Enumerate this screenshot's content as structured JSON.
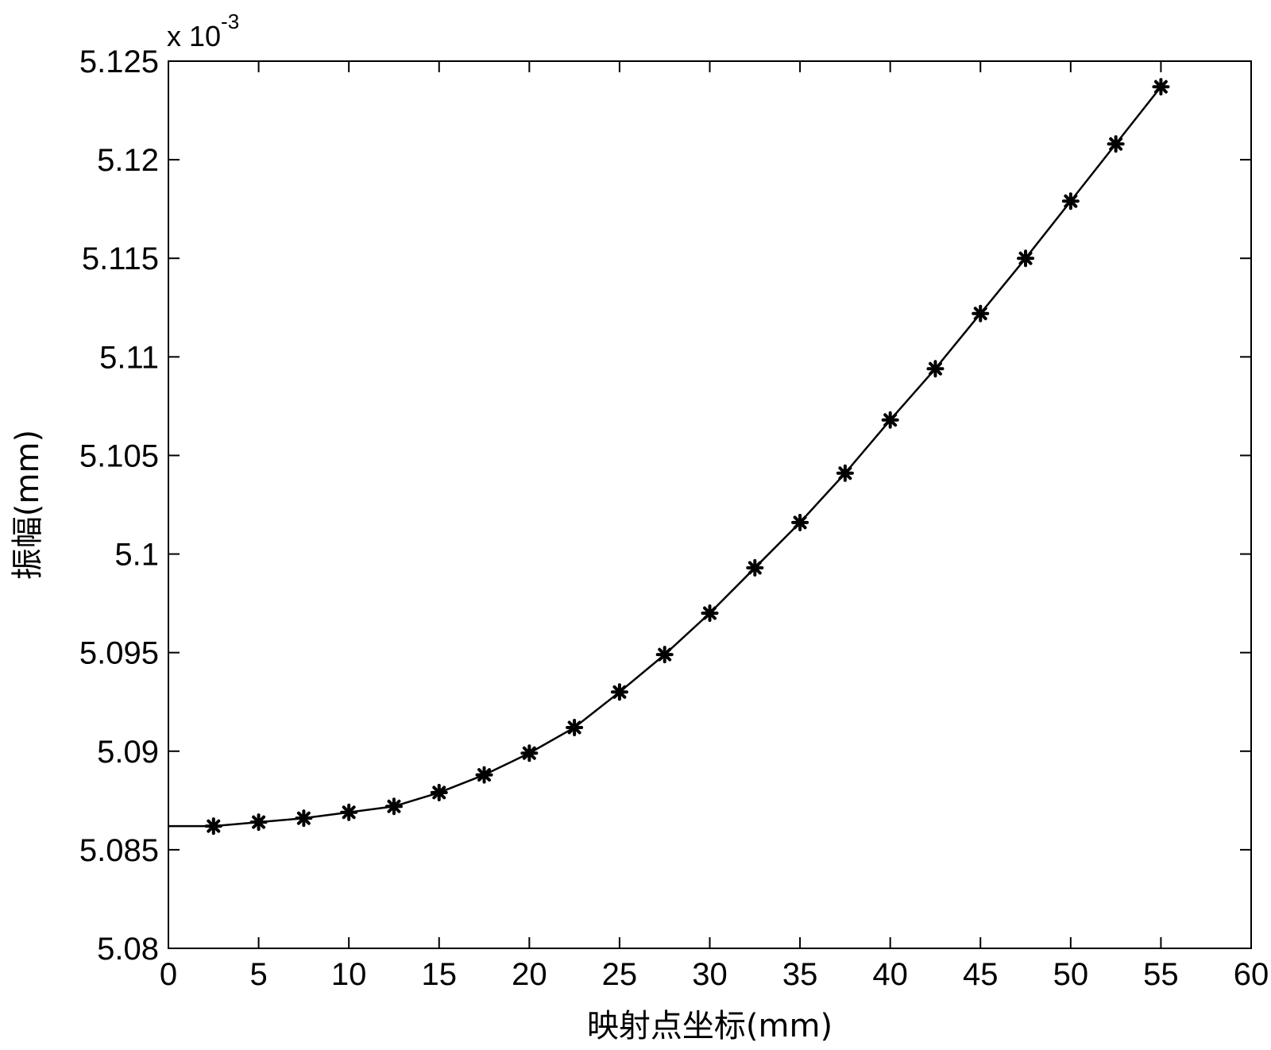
{
  "chart_data": {
    "type": "line",
    "title": "",
    "xlabel": "映射点坐标(mm)",
    "ylabel": "振幅(mm)",
    "y_multiplier": {
      "base": "x 10",
      "exponent": "-3"
    },
    "xlim": [
      0,
      60
    ],
    "ylim": [
      5.08,
      5.125
    ],
    "x_ticks": [
      0,
      5,
      10,
      15,
      20,
      25,
      30,
      35,
      40,
      45,
      50,
      55,
      60
    ],
    "x_tick_labels": [
      "0",
      "5",
      "10",
      "15",
      "20",
      "25",
      "30",
      "35",
      "40",
      "45",
      "50",
      "55",
      "60"
    ],
    "y_ticks": [
      5.08,
      5.085,
      5.09,
      5.095,
      5.1,
      5.105,
      5.11,
      5.115,
      5.12,
      5.125
    ],
    "y_tick_labels": [
      "5.08",
      "5.085",
      "5.09",
      "5.095",
      "5.1",
      "5.105",
      "5.11",
      "5.115",
      "5.12",
      "5.125"
    ],
    "grid": false,
    "line_color": "#000000",
    "marker": "asterisk",
    "line": {
      "x": [
        0,
        2.5,
        5,
        7.5,
        10,
        12.5,
        15,
        17.5,
        20,
        22.5,
        25,
        27.5,
        30,
        32.5,
        35,
        37.5,
        40,
        42.5,
        45,
        47.5,
        50,
        52.5,
        55
      ],
      "y": [
        5.0862,
        5.0862,
        5.0864,
        5.0866,
        5.0869,
        5.0872,
        5.0879,
        5.0888,
        5.0899,
        5.0912,
        5.093,
        5.0949,
        5.097,
        5.0993,
        5.1016,
        5.1041,
        5.1068,
        5.1094,
        5.1122,
        5.115,
        5.1179,
        5.1208,
        5.1237
      ]
    },
    "markers": {
      "x": [
        2.5,
        5,
        7.5,
        10,
        12.5,
        15,
        17.5,
        20,
        22.5,
        25,
        27.5,
        30,
        32.5,
        35,
        37.5,
        40,
        42.5,
        45,
        47.5,
        50,
        52.5,
        55
      ],
      "y": [
        5.0862,
        5.0864,
        5.0866,
        5.0869,
        5.0872,
        5.0879,
        5.0888,
        5.0899,
        5.0912,
        5.093,
        5.0949,
        5.097,
        5.0993,
        5.1016,
        5.1041,
        5.1068,
        5.1094,
        5.1122,
        5.115,
        5.1179,
        5.1208,
        5.1237
      ]
    }
  }
}
